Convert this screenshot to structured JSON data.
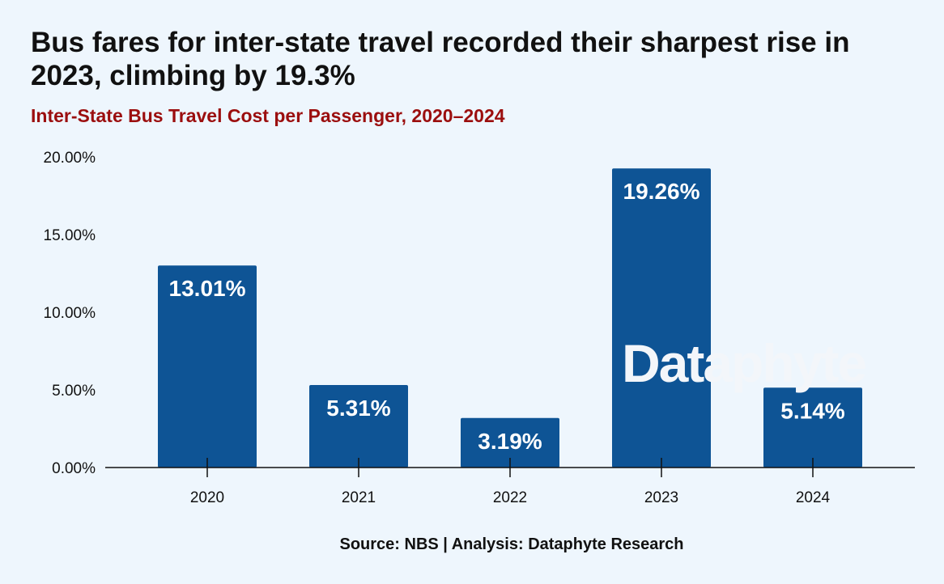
{
  "title": "Bus fares for inter-state travel recorded their sharpest rise in 2023, climbing by 19.3%",
  "subtitle": "Inter-State Bus Travel Cost per Passenger, 2020–2024",
  "source": "Source: NBS | Analysis: Dataphyte Research",
  "watermark": "Dataphyte",
  "colors": {
    "bar": "#0e5495",
    "background": "#eef6fd",
    "subtitle": "#9b0e0e"
  },
  "chart_data": {
    "type": "bar",
    "categories": [
      "2020",
      "2021",
      "2022",
      "2023",
      "2024"
    ],
    "values": [
      13.01,
      5.31,
      3.19,
      19.26,
      5.14
    ],
    "data_labels": [
      "13.01%",
      "5.31%",
      "3.19%",
      "19.26%",
      "5.14%"
    ],
    "y_ticks": [
      0,
      5,
      10,
      15,
      20
    ],
    "y_tick_labels": [
      "0.00%",
      "5.00%",
      "10.00%",
      "15.00%",
      "20.00%"
    ],
    "ylim": [
      0,
      20
    ],
    "grid": false,
    "xlabel": "",
    "ylabel": ""
  }
}
